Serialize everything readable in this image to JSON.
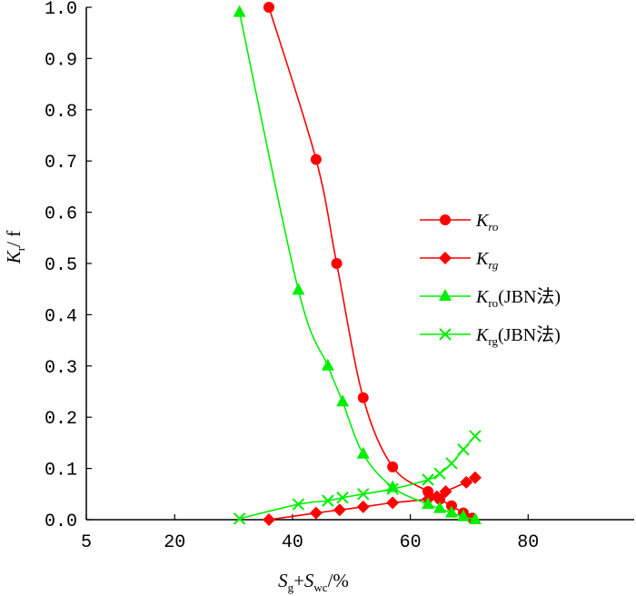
{
  "chart_data": {
    "type": "line",
    "title": "",
    "xlabel": {
      "main": "S",
      "sub1": "g",
      "plus": "+",
      "main2": "S",
      "sub2": "wc",
      "unit": "/%"
    },
    "ylabel": {
      "main": "K",
      "sub": "r",
      "unit": "/ f"
    },
    "xlim": [
      5,
      98
    ],
    "ylim": [
      0,
      1.0
    ],
    "x_ticks": [
      5,
      20,
      40,
      60,
      80
    ],
    "x_tick_labels": [
      "5",
      "20",
      "40",
      "60",
      "80"
    ],
    "y_ticks": [
      0,
      0.1,
      0.2,
      0.3,
      0.4,
      0.5,
      0.6,
      0.7,
      0.8,
      0.9,
      1.0
    ],
    "y_tick_labels": [
      "0.0",
      "0.1",
      "0.2",
      "0.3",
      "0.4",
      "0.5",
      "0.6",
      "0.7",
      "0.8",
      "0.9",
      "1.0"
    ],
    "grid": false,
    "legend_position": "center-right",
    "series": [
      {
        "name": "Kro",
        "legend_main": "K",
        "legend_sub": "ro",
        "legend_suffix": "",
        "sub_italic": true,
        "color": "#ff0000",
        "marker": "circle",
        "x": [
          36,
          44,
          47.5,
          52,
          57,
          63,
          65,
          67,
          69,
          70.5
        ],
        "y": [
          1.0,
          0.703,
          0.5,
          0.238,
          0.103,
          0.055,
          0.04,
          0.027,
          0.013,
          0.003
        ]
      },
      {
        "name": "Krg",
        "legend_main": "K",
        "legend_sub": "rg",
        "legend_suffix": "",
        "sub_italic": true,
        "color": "#ff0000",
        "marker": "diamond",
        "x": [
          36,
          44,
          48,
          52,
          57,
          63,
          64.5,
          66,
          69.5,
          71
        ],
        "y": [
          0.0,
          0.013,
          0.019,
          0.025,
          0.033,
          0.04,
          0.045,
          0.055,
          0.073,
          0.082
        ]
      },
      {
        "name": "Kro(JBN法)",
        "legend_main": "K",
        "legend_sub": "ro",
        "legend_suffix": "(JBN法)",
        "sub_italic": false,
        "color": "#00ee00",
        "marker": "triangle",
        "x": [
          31,
          41,
          46,
          48.5,
          52,
          57,
          63,
          65,
          67,
          69,
          71
        ],
        "y": [
          0.99,
          0.448,
          0.3,
          0.23,
          0.128,
          0.063,
          0.03,
          0.022,
          0.013,
          0.006,
          0.0
        ]
      },
      {
        "name": "Krg(JBN法)",
        "legend_main": "K",
        "legend_sub": "rg",
        "legend_suffix": "(JBN法)",
        "sub_italic": false,
        "color": "#00ee00",
        "marker": "x",
        "x": [
          31,
          41,
          46,
          48.5,
          52,
          57,
          63,
          65,
          67,
          69,
          71
        ],
        "y": [
          0.002,
          0.03,
          0.037,
          0.043,
          0.05,
          0.06,
          0.078,
          0.09,
          0.11,
          0.137,
          0.163
        ]
      }
    ]
  }
}
